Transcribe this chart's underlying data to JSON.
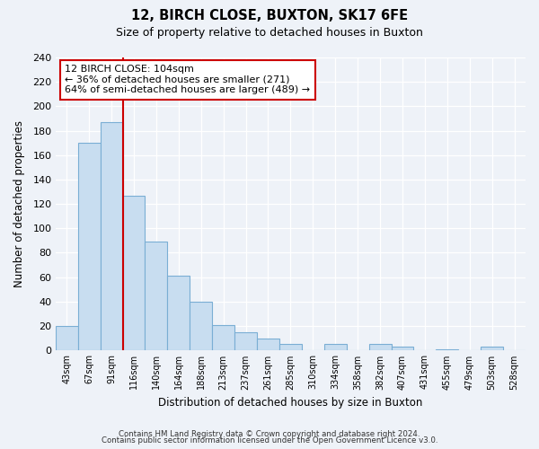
{
  "title": "12, BIRCH CLOSE, BUXTON, SK17 6FE",
  "subtitle": "Size of property relative to detached houses in Buxton",
  "xlabel": "Distribution of detached houses by size in Buxton",
  "ylabel": "Number of detached properties",
  "bar_labels": [
    "43sqm",
    "67sqm",
    "91sqm",
    "116sqm",
    "140sqm",
    "164sqm",
    "188sqm",
    "213sqm",
    "237sqm",
    "261sqm",
    "285sqm",
    "310sqm",
    "334sqm",
    "358sqm",
    "382sqm",
    "407sqm",
    "431sqm",
    "455sqm",
    "479sqm",
    "503sqm",
    "528sqm"
  ],
  "bar_values": [
    20,
    170,
    187,
    127,
    89,
    61,
    40,
    21,
    15,
    10,
    5,
    0,
    5,
    0,
    5,
    3,
    0,
    1,
    0,
    3,
    0
  ],
  "bar_color": "#c8ddf0",
  "bar_edge_color": "#7aaed4",
  "vline_color": "#cc0000",
  "ylim": [
    0,
    240
  ],
  "yticks": [
    0,
    20,
    40,
    60,
    80,
    100,
    120,
    140,
    160,
    180,
    200,
    220,
    240
  ],
  "annotation_title": "12 BIRCH CLOSE: 104sqm",
  "annotation_line1": "← 36% of detached houses are smaller (271)",
  "annotation_line2": "64% of semi-detached houses are larger (489) →",
  "annotation_box_color": "#ffffff",
  "annotation_box_edge": "#cc0000",
  "footer1": "Contains HM Land Registry data © Crown copyright and database right 2024.",
  "footer2": "Contains public sector information licensed under the Open Government Licence v3.0.",
  "background_color": "#eef2f8"
}
